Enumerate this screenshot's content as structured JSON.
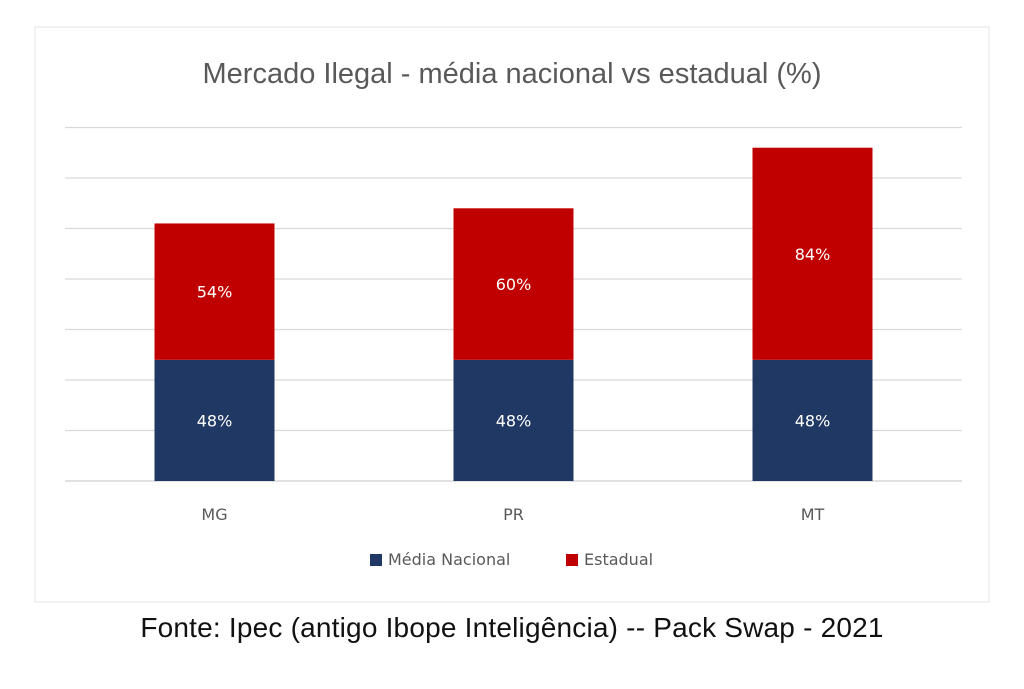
{
  "chart_data": {
    "type": "bar",
    "stacked": true,
    "title": "Mercado Ilegal - média nacional vs estadual (%)",
    "categories": [
      "MG",
      "PR",
      "MT"
    ],
    "series": [
      {
        "name": "Média Nacional",
        "values": [
          48,
          48,
          48
        ],
        "labels": [
          "48%",
          "48%",
          "48%"
        ],
        "color": "#203864"
      },
      {
        "name": "Estadual",
        "values": [
          54,
          60,
          84
        ],
        "labels": [
          "54%",
          "60%",
          "84%"
        ],
        "color": "#c00000"
      }
    ],
    "ylim": [
      0,
      140
    ],
    "gridlines": true,
    "xlabel": "",
    "ylabel": "",
    "legend": "bottom"
  },
  "source": "Fonte: Ipec (antigo Ibope Inteligência) -- Pack Swap - 2021",
  "colors": {
    "grid": "#d9d9d9",
    "title": "#595959",
    "tick": "#595959",
    "bar_label": "#ffffff"
  }
}
